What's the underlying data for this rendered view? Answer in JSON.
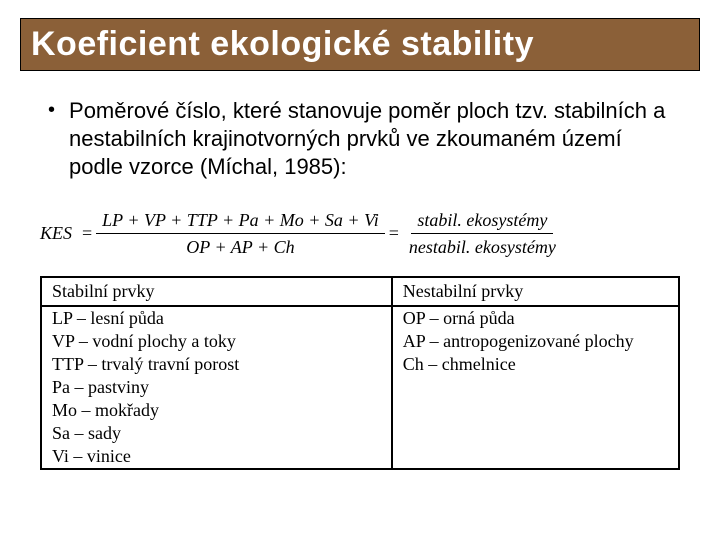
{
  "title": "Koeficient ekologické stability",
  "bullet": "Poměrové číslo, které stanovuje poměr ploch tzv. stabilních a nestabilních krajinotvorných prvků ve zkoumaném území podle vzorce (Míchal, 1985):",
  "formula": {
    "label": "KES",
    "left": {
      "numerator": "LP + VP + TTP + Pa + Mo + Sa + Vi",
      "denominator": "OP + AP + Ch"
    },
    "right": {
      "numerator": "stabil. ekosystémy",
      "denominator": "nestabil. ekosystémy"
    }
  },
  "table": {
    "headers": {
      "left": "Stabilní prvky",
      "right": "Nestabilní prvky"
    },
    "rows": [
      {
        "left": "LP – lesní půda",
        "right": "OP – orná půda"
      },
      {
        "left": "VP – vodní plochy a toky",
        "right": "AP – antropogenizované plochy"
      },
      {
        "left": "TTP – trvalý travní porost",
        "right": "Ch – chmelnice"
      },
      {
        "left": "Pa – pastviny",
        "right": ""
      },
      {
        "left": "Mo – mokřady",
        "right": ""
      },
      {
        "left": "Sa – sady",
        "right": ""
      },
      {
        "left": "Vi – vinice",
        "right": ""
      }
    ]
  }
}
